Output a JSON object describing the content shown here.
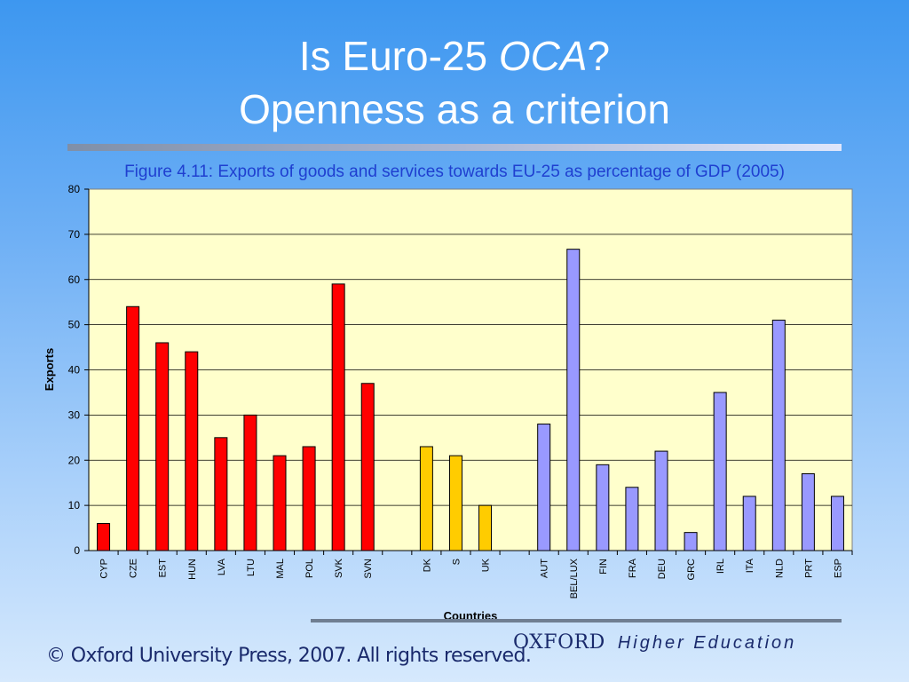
{
  "slide": {
    "title_line1_prefix": "Is Euro-25 ",
    "title_line1_italic": "OCA",
    "title_line1_suffix": "?",
    "title_line2": "Openness as a criterion"
  },
  "footer": {
    "copyright": "© Oxford University Press, 2007. All rights reserved.",
    "brand_name": "OXFORD",
    "brand_tag": "Higher Education"
  },
  "chart_data": {
    "type": "bar",
    "title": "Figure 4.11: Exports of goods and services towards EU-25 as percentage of GDP (2005)",
    "xlabel": "Countries",
    "ylabel": "Exports",
    "ylim": [
      0,
      80
    ],
    "yticks": [
      0,
      10,
      20,
      30,
      40,
      50,
      60,
      70,
      80
    ],
    "grid": true,
    "legend": "none",
    "colors": {
      "group1": "#ff0000",
      "group2": "#ffcc00",
      "group3": "#9999ff",
      "plot_bg": "#ffffcc"
    },
    "categories": [
      "CYP",
      "CZE",
      "EST",
      "HUN",
      "LVA",
      "LTU",
      "MAL",
      "POL",
      "SVK",
      "SVN",
      "",
      "DK",
      "S",
      "UK",
      "",
      "AUT",
      "BEL/LUX",
      "FIN",
      "FRA",
      "DEU",
      "GRC",
      "IRL",
      "ITA",
      "NLD",
      "PRT",
      "ESP"
    ],
    "values": [
      6,
      54,
      46,
      44,
      25,
      30,
      21,
      23,
      59,
      37,
      null,
      23,
      21,
      10,
      null,
      28,
      66.7,
      19,
      14,
      22,
      4,
      35,
      12,
      51,
      17,
      12
    ],
    "groups": [
      1,
      1,
      1,
      1,
      1,
      1,
      1,
      1,
      1,
      1,
      0,
      2,
      2,
      2,
      0,
      3,
      3,
      3,
      3,
      3,
      3,
      3,
      3,
      3,
      3,
      3
    ]
  }
}
